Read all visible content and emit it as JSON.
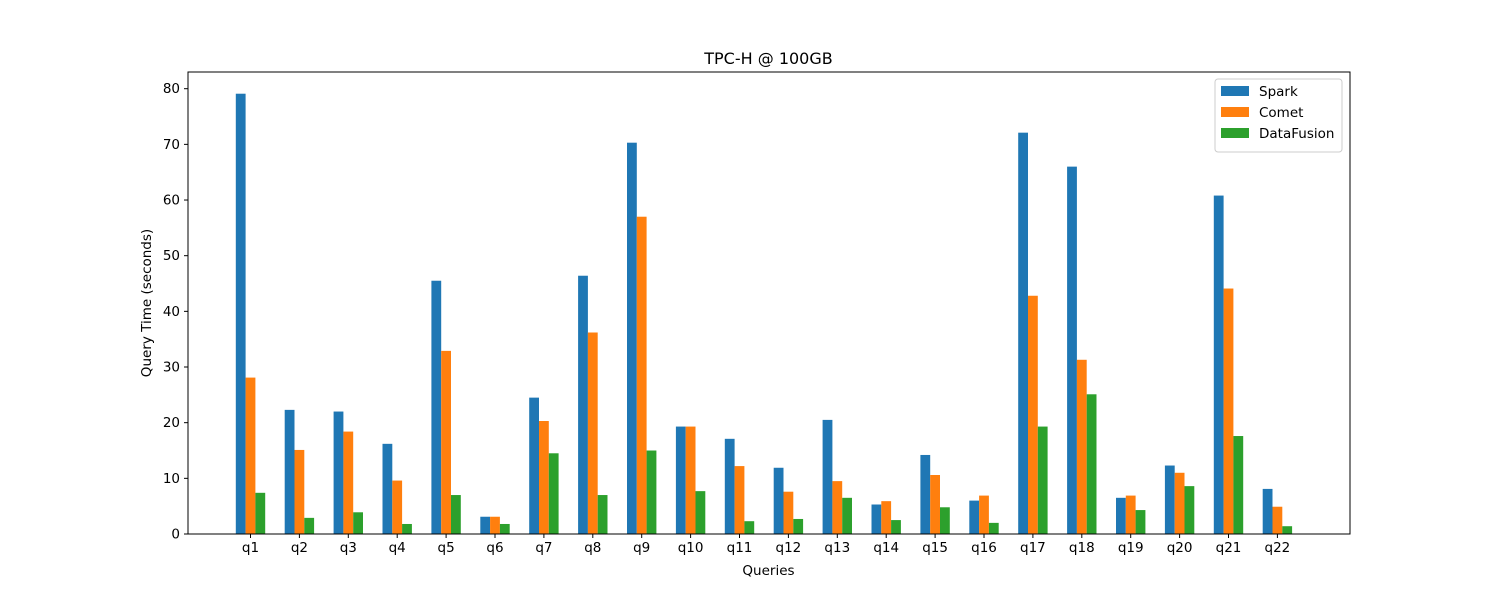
{
  "chart_data": {
    "type": "bar",
    "title": "TPC-H @ 100GB",
    "xlabel": "Queries",
    "ylabel": "Query Time (seconds)",
    "ylim": [
      0,
      83
    ],
    "yticks": [
      0,
      10,
      20,
      30,
      40,
      50,
      60,
      70,
      80
    ],
    "grid": false,
    "legend_position": "top-right",
    "categories": [
      "q1",
      "q2",
      "q3",
      "q4",
      "q5",
      "q6",
      "q7",
      "q8",
      "q9",
      "q10",
      "q11",
      "q12",
      "q13",
      "q14",
      "q15",
      "q16",
      "q17",
      "q18",
      "q19",
      "q20",
      "q21",
      "q22"
    ],
    "series": [
      {
        "name": "Spark",
        "color": "#1f77b4",
        "values": [
          79.1,
          22.3,
          22.0,
          16.2,
          45.5,
          3.1,
          24.5,
          46.4,
          70.3,
          19.3,
          17.1,
          11.9,
          20.5,
          5.3,
          14.2,
          6.0,
          72.1,
          66.0,
          6.5,
          12.3,
          60.8,
          8.1
        ]
      },
      {
        "name": "Comet",
        "color": "#ff7f0e",
        "values": [
          28.1,
          15.1,
          18.4,
          9.6,
          32.9,
          3.1,
          20.3,
          36.2,
          57.0,
          19.3,
          12.2,
          7.6,
          9.5,
          5.9,
          10.6,
          6.9,
          42.8,
          31.3,
          6.9,
          11.0,
          44.1,
          4.9
        ]
      },
      {
        "name": "DataFusion",
        "color": "#2ca02c",
        "values": [
          7.4,
          2.9,
          3.9,
          1.8,
          7.0,
          1.8,
          14.5,
          7.0,
          15.0,
          7.7,
          2.3,
          2.7,
          6.5,
          2.5,
          4.8,
          2.0,
          19.3,
          25.1,
          4.3,
          8.6,
          17.6,
          1.4
        ]
      }
    ]
  }
}
